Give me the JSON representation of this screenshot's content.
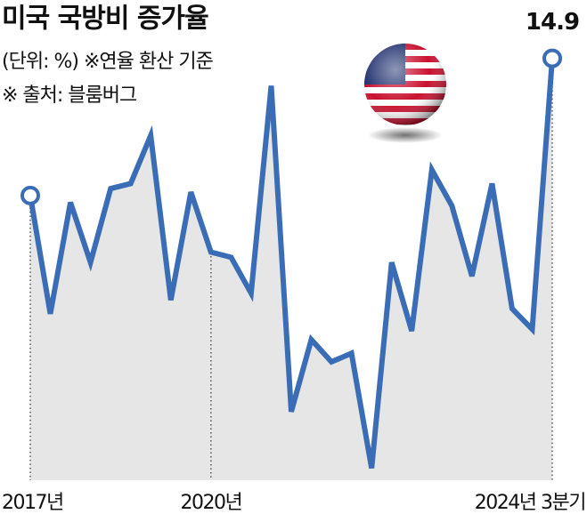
{
  "chart_data": {
    "type": "line",
    "title": "미국 국방비 증가율",
    "subtitle": "(단위: %) ※연율 환산 기준",
    "source": "※ 출처: 블룸버그",
    "categories": [
      "2017년",
      null,
      null,
      null,
      null,
      null,
      null,
      null,
      null,
      "2020년",
      null,
      null,
      null,
      null,
      null,
      null,
      null,
      null,
      null,
      null,
      null,
      null,
      null,
      null,
      null,
      null,
      "2024년 3분기"
    ],
    "values": [
      6.9,
      0.0,
      6.5,
      3.0,
      7.3,
      7.6,
      10.4,
      0.8,
      7.1,
      3.6,
      3.3,
      1.2,
      13.3,
      -5.7,
      -1.5,
      -2.8,
      -2.3,
      -9.0,
      3.0,
      -1.0,
      8.4,
      6.3,
      2.2,
      7.6,
      0.3,
      -0.9,
      14.9
    ],
    "value_labels": [
      null,
      null,
      null,
      null,
      null,
      null,
      null,
      null,
      null,
      null,
      null,
      null,
      null,
      null,
      null,
      null,
      null,
      null,
      null,
      null,
      null,
      null,
      null,
      null,
      null,
      null,
      "14.9"
    ],
    "color": "#3a6db5",
    "ylim": [
      -9.7,
      18.3
    ]
  }
}
